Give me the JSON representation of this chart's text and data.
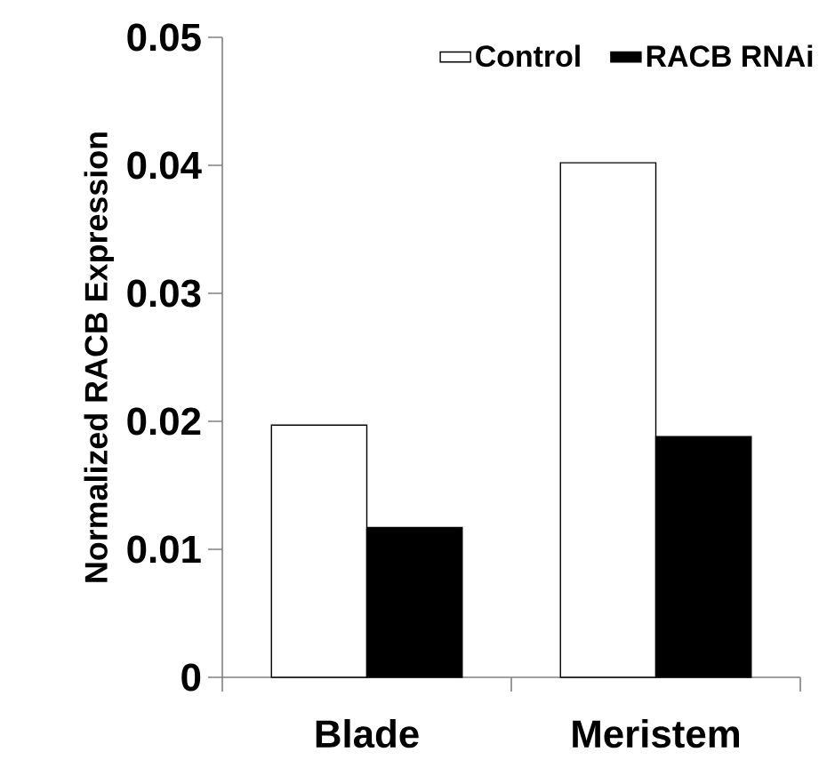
{
  "chart_data": {
    "type": "bar",
    "ylabel": "Normalized RACB Expression",
    "categories": [
      "Blade",
      "Meristem"
    ],
    "series": [
      {
        "name": "Control",
        "color": "#ffffff",
        "values": [
          0.0197,
          0.0402
        ]
      },
      {
        "name": "RACB RNAi",
        "color": "#000000",
        "values": [
          0.0117,
          0.0188
        ]
      }
    ],
    "ylim": [
      0,
      0.05
    ],
    "yticks": [
      0,
      0.01,
      0.02,
      0.03,
      0.04,
      0.05
    ],
    "grid": false,
    "legend": "top right"
  }
}
